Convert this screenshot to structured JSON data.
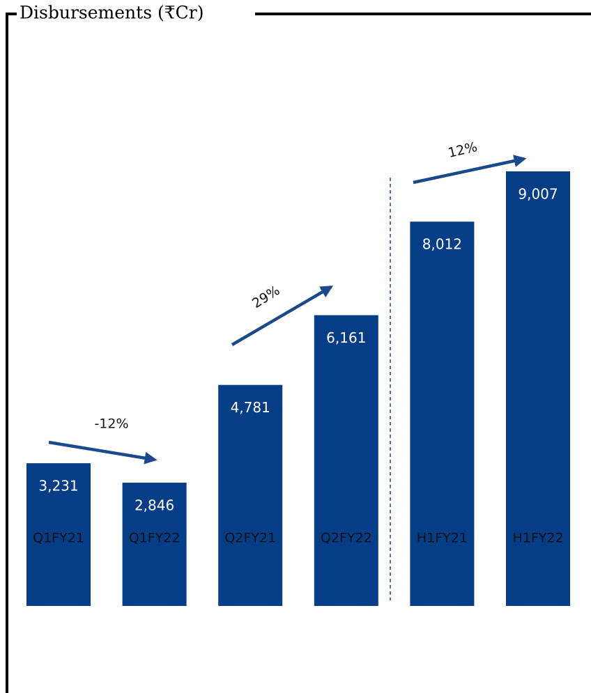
{
  "chart_data": {
    "type": "bar",
    "title": "Disbursements (₹Cr)",
    "categories": [
      "Q1FY21",
      "Q1FY22",
      "Q2FY21",
      "Q2FY22",
      "H1FY21",
      "H1FY22"
    ],
    "values": [
      3231,
      2846,
      4781,
      6161,
      8012,
      9007
    ],
    "value_labels": [
      "3,231",
      "2,846",
      "4,781",
      "6,161",
      "8,012",
      "9,007"
    ],
    "color": "#053d86",
    "ylim": [
      407,
      10000
    ],
    "annotations": [
      "-12%",
      "29%",
      "12%"
    ]
  }
}
